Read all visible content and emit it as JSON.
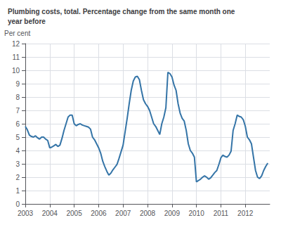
{
  "chart_data": {
    "type": "line",
    "title": "Plumbing costs, total. Percentage change from the same month one\nyear before",
    "ylabel": "Per cent",
    "color": "#3474a7",
    "grid": true,
    "xlim": [
      2003.0,
      2012.999
    ],
    "ylim": [
      0,
      12
    ],
    "xticks": [
      2003,
      2004,
      2005,
      2006,
      2007,
      2008,
      2009,
      2010,
      2011,
      2012
    ],
    "yticks": [
      0,
      1,
      2,
      3,
      4,
      5,
      6,
      7,
      8,
      9,
      10,
      11,
      12
    ],
    "x": [
      2003.0,
      2003.083,
      2003.167,
      2003.25,
      2003.333,
      2003.417,
      2003.5,
      2003.583,
      2003.667,
      2003.75,
      2003.833,
      2003.917,
      2004.0,
      2004.083,
      2004.167,
      2004.25,
      2004.333,
      2004.417,
      2004.5,
      2004.583,
      2004.667,
      2004.75,
      2004.833,
      2004.917,
      2005.0,
      2005.083,
      2005.167,
      2005.25,
      2005.333,
      2005.417,
      2005.5,
      2005.583,
      2005.667,
      2005.75,
      2005.833,
      2005.917,
      2006.0,
      2006.083,
      2006.167,
      2006.25,
      2006.333,
      2006.417,
      2006.5,
      2006.583,
      2006.667,
      2006.75,
      2006.833,
      2006.917,
      2007.0,
      2007.083,
      2007.167,
      2007.25,
      2007.333,
      2007.417,
      2007.5,
      2007.583,
      2007.667,
      2007.75,
      2007.833,
      2007.917,
      2008.0,
      2008.083,
      2008.167,
      2008.25,
      2008.333,
      2008.417,
      2008.5,
      2008.583,
      2008.667,
      2008.75,
      2008.833,
      2008.917,
      2009.0,
      2009.083,
      2009.167,
      2009.25,
      2009.333,
      2009.417,
      2009.5,
      2009.583,
      2009.667,
      2009.75,
      2009.833,
      2009.917,
      2010.0,
      2010.083,
      2010.167,
      2010.25,
      2010.333,
      2010.417,
      2010.5,
      2010.583,
      2010.667,
      2010.75,
      2010.833,
      2010.917,
      2011.0,
      2011.083,
      2011.167,
      2011.25,
      2011.333,
      2011.417,
      2011.5,
      2011.583,
      2011.667,
      2011.75,
      2011.833,
      2011.917,
      2012.0,
      2012.083,
      2012.167,
      2012.25,
      2012.333,
      2012.417,
      2012.5,
      2012.583,
      2012.667,
      2012.75,
      2012.833,
      2012.917
    ],
    "values": [
      5.8,
      5.55,
      5.15,
      5.05,
      5.0,
      5.1,
      4.95,
      4.85,
      5.0,
      5.0,
      4.85,
      4.75,
      4.2,
      4.25,
      4.35,
      4.45,
      4.3,
      4.4,
      4.9,
      5.5,
      6.0,
      6.5,
      6.65,
      6.65,
      6.0,
      5.85,
      5.95,
      6.0,
      5.9,
      5.85,
      5.8,
      5.75,
      5.6,
      5.0,
      4.8,
      4.5,
      4.2,
      3.8,
      3.2,
      2.8,
      2.45,
      2.15,
      2.3,
      2.55,
      2.75,
      2.95,
      3.4,
      3.9,
      4.4,
      5.4,
      6.4,
      7.5,
      8.5,
      9.2,
      9.5,
      9.55,
      9.3,
      8.5,
      7.8,
      7.5,
      7.3,
      7.0,
      6.5,
      6.0,
      5.8,
      5.5,
      5.2,
      6.0,
      6.5,
      7.2,
      9.85,
      9.75,
      9.5,
      8.9,
      8.5,
      7.5,
      6.8,
      6.4,
      6.2,
      5.5,
      4.5,
      4.0,
      3.8,
      3.5,
      1.65,
      1.75,
      1.85,
      2.0,
      2.1,
      2.0,
      1.85,
      1.95,
      2.15,
      2.35,
      2.5,
      2.95,
      3.45,
      3.65,
      3.55,
      3.5,
      3.65,
      3.95,
      5.5,
      6.0,
      6.65,
      6.55,
      6.5,
      6.3,
      5.8,
      5.0,
      4.8,
      4.5,
      3.5,
      2.5,
      2.0,
      1.9,
      2.1,
      2.5,
      2.8,
      3.05
    ]
  }
}
